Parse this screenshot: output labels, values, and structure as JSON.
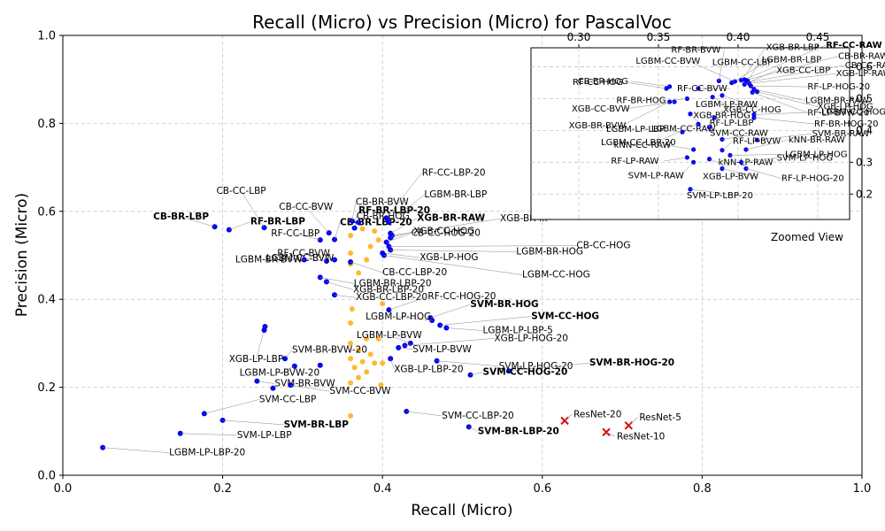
{
  "chart_data": {
    "type": "scatter",
    "title": "Recall (Micro) vs Precision (Micro) for PascalVoc",
    "xlabel": "Recall (Micro)",
    "ylabel": "Precision (Micro)",
    "xlim": [
      0,
      1
    ],
    "ylim": [
      0,
      1
    ],
    "xticks": [
      "0.0",
      "0.2",
      "0.4",
      "0.6",
      "0.8",
      "1.0"
    ],
    "yticks": [
      "0.0",
      "0.2",
      "0.4",
      "0.6",
      "0.8",
      "1.0"
    ],
    "grid": true,
    "colors": {
      "classic": "#0000ee",
      "cluster": "#ffb833",
      "deep": "#dd0000",
      "leader": "#888888"
    },
    "series": [
      {
        "marker": "dot",
        "points": [
          {
            "x": 0.19,
            "y": 0.565,
            "label": "CB-BR-LBP",
            "bold": true
          },
          {
            "x": 0.208,
            "y": 0.558,
            "label": "RF-BR-LBP",
            "bold": true
          },
          {
            "x": 0.252,
            "y": 0.563,
            "label": "CB-CC-LBP"
          },
          {
            "x": 0.322,
            "y": 0.535,
            "label": "RF-CC-LBP"
          },
          {
            "x": 0.333,
            "y": 0.551,
            "label": "CB-CC-BVW"
          },
          {
            "x": 0.34,
            "y": 0.536,
            "label": "CB-BR-LBP-20",
            "bold": true
          },
          {
            "x": 0.362,
            "y": 0.578,
            "label": "CB-BR-BVW"
          },
          {
            "x": 0.37,
            "y": 0.575,
            "label": "RF-BR-LBP-20",
            "bold": true
          },
          {
            "x": 0.365,
            "y": 0.562,
            "label": "CB-BR-HOG"
          },
          {
            "x": 0.405,
            "y": 0.585,
            "label": "RF-CC-LBP-20"
          },
          {
            "x": 0.408,
            "y": 0.575,
            "label": "LGBM-BR-LBP"
          },
          {
            "x": 0.41,
            "y": 0.55,
            "label": "XGB-BR-RAW",
            "bold": true
          },
          {
            "x": 0.412,
            "y": 0.545,
            "label": "XGB-BR-..."
          },
          {
            "x": 0.41,
            "y": 0.54,
            "label": "XGB-CC-HOG"
          },
          {
            "x": 0.405,
            "y": 0.53,
            "label": "CB-CC-HOG-20"
          },
          {
            "x": 0.408,
            "y": 0.52,
            "label": "CB-CC-HOG"
          },
          {
            "x": 0.41,
            "y": 0.512,
            "label": "LGBM-BR-HOG"
          },
          {
            "x": 0.4,
            "y": 0.505,
            "label": "XGB-LP-HOG"
          },
          {
            "x": 0.402,
            "y": 0.5,
            "label": "LGBM-CC-HOG"
          },
          {
            "x": 0.34,
            "y": 0.49,
            "label": "RF-CC-BVW"
          },
          {
            "x": 0.33,
            "y": 0.487,
            "label": "LGBM-CC-BVW"
          },
          {
            "x": 0.302,
            "y": 0.49,
            "label": "LGBM-BR-BVW"
          },
          {
            "x": 0.36,
            "y": 0.485,
            "label": "CB-CC-LBP-20"
          },
          {
            "x": 0.322,
            "y": 0.45,
            "label": "LGBM-BR-LBP-20"
          },
          {
            "x": 0.33,
            "y": 0.44,
            "label": "XGB-BR-LBP-20"
          },
          {
            "x": 0.34,
            "y": 0.41,
            "label": "XGB-CC-LBP-20"
          },
          {
            "x": 0.408,
            "y": 0.376,
            "label": "RF-CC-HOG-20"
          },
          {
            "x": 0.46,
            "y": 0.358,
            "label": "SVM-BR-HOG",
            "bold": true
          },
          {
            "x": 0.462,
            "y": 0.352,
            "label": "LGBM-LP-HOG"
          },
          {
            "x": 0.472,
            "y": 0.341,
            "label": "SVM-CC-HOG",
            "bold": true
          },
          {
            "x": 0.48,
            "y": 0.335,
            "label": "LGBM-LP-LBP-5"
          },
          {
            "x": 0.253,
            "y": 0.338,
            "label": "XGB-LP-LBP"
          },
          {
            "x": 0.252,
            "y": 0.33,
            "label": ""
          },
          {
            "x": 0.435,
            "y": 0.3,
            "label": "LGBM-LP-BVW"
          },
          {
            "x": 0.428,
            "y": 0.295,
            "label": "XGB-LP-HOG-20"
          },
          {
            "x": 0.42,
            "y": 0.29,
            "label": "SVM-LP-BVW"
          },
          {
            "x": 0.41,
            "y": 0.265,
            "label": "XGB-LP-LBP-20"
          },
          {
            "x": 0.468,
            "y": 0.26,
            "label": "SVM-LP-HOG-20"
          },
          {
            "x": 0.558,
            "y": 0.237,
            "label": "SVM-BR-HOG-20",
            "bold": true
          },
          {
            "x": 0.51,
            "y": 0.228,
            "label": "SVM-CC-HOG-20",
            "bold": true
          },
          {
            "x": 0.278,
            "y": 0.265,
            "label": "SVM-BR-BVW-20"
          },
          {
            "x": 0.29,
            "y": 0.248,
            "label": "LGBM-LP-BVW-20"
          },
          {
            "x": 0.322,
            "y": 0.25,
            "label": ""
          },
          {
            "x": 0.243,
            "y": 0.214,
            "label": "SVM-BR-BVW"
          },
          {
            "x": 0.263,
            "y": 0.198,
            "label": ""
          },
          {
            "x": 0.285,
            "y": 0.205,
            "label": "SVM-CC-BVW"
          },
          {
            "x": 0.177,
            "y": 0.14,
            "label": "SVM-CC-LBP"
          },
          {
            "x": 0.2,
            "y": 0.125,
            "label": "SVM-BR-LBP",
            "bold": true
          },
          {
            "x": 0.147,
            "y": 0.095,
            "label": "SVM-LP-LBP"
          },
          {
            "x": 0.05,
            "y": 0.063,
            "label": "LGBM-LP-LBP-20"
          },
          {
            "x": 0.43,
            "y": 0.145,
            "label": "SVM-CC-LBP-20"
          },
          {
            "x": 0.508,
            "y": 0.11,
            "label": "SVM-BR-LBP-20",
            "bold": true
          }
        ]
      },
      {
        "marker": "dot",
        "points": [
          {
            "x": 0.36,
            "y": 0.545
          },
          {
            "x": 0.375,
            "y": 0.56
          },
          {
            "x": 0.39,
            "y": 0.555
          },
          {
            "x": 0.395,
            "y": 0.535
          },
          {
            "x": 0.385,
            "y": 0.52
          },
          {
            "x": 0.36,
            "y": 0.505
          },
          {
            "x": 0.38,
            "y": 0.49
          },
          {
            "x": 0.37,
            "y": 0.46
          },
          {
            "x": 0.36,
            "y": 0.48
          },
          {
            "x": 0.4,
            "y": 0.39
          },
          {
            "x": 0.362,
            "y": 0.378
          },
          {
            "x": 0.36,
            "y": 0.346
          },
          {
            "x": 0.38,
            "y": 0.31
          },
          {
            "x": 0.395,
            "y": 0.31
          },
          {
            "x": 0.36,
            "y": 0.3
          },
          {
            "x": 0.37,
            "y": 0.285
          },
          {
            "x": 0.385,
            "y": 0.275
          },
          {
            "x": 0.36,
            "y": 0.265
          },
          {
            "x": 0.375,
            "y": 0.258
          },
          {
            "x": 0.39,
            "y": 0.255
          },
          {
            "x": 0.4,
            "y": 0.255
          },
          {
            "x": 0.365,
            "y": 0.245
          },
          {
            "x": 0.38,
            "y": 0.235
          },
          {
            "x": 0.37,
            "y": 0.222
          },
          {
            "x": 0.36,
            "y": 0.21
          },
          {
            "x": 0.398,
            "y": 0.205
          },
          {
            "x": 0.36,
            "y": 0.135
          }
        ]
      },
      {
        "marker": "x",
        "points": [
          {
            "x": 0.628,
            "y": 0.124,
            "label": "ResNet-20"
          },
          {
            "x": 0.708,
            "y": 0.113,
            "label": "ResNet-5"
          },
          {
            "x": 0.68,
            "y": 0.098,
            "label": "ResNet-10"
          }
        ]
      }
    ],
    "inset": {
      "title": "Zoomed View",
      "xlim": [
        0.27,
        0.47
      ],
      "ylim": [
        0.12,
        0.66
      ],
      "xticks": [
        "0.30",
        "0.35",
        "0.40",
        "0.45"
      ],
      "yticks": [
        "0.2",
        "0.3",
        "0.4",
        "0.5",
        "0.6"
      ],
      "points": [
        {
          "x": 0.388,
          "y": 0.556,
          "label": "RF-BR-BVW"
        },
        {
          "x": 0.402,
          "y": 0.558,
          "label": "XGB-BR-LBP"
        },
        {
          "x": 0.404,
          "y": 0.56,
          "label": "RF-CC-RAW",
          "bold": true
        },
        {
          "x": 0.405,
          "y": 0.558,
          "label": "CB-BR-RAW"
        },
        {
          "x": 0.406,
          "y": 0.556,
          "label": "LGBM-BR-LBP"
        },
        {
          "x": 0.406,
          "y": 0.552,
          "label": "CB-CC-RAW"
        },
        {
          "x": 0.407,
          "y": 0.548,
          "label": "XGB-LP-RAW"
        },
        {
          "x": 0.404,
          "y": 0.545,
          "label": "XGB-CC-LBP"
        },
        {
          "x": 0.408,
          "y": 0.54,
          "label": "RF-LP-HOG-20"
        },
        {
          "x": 0.396,
          "y": 0.55,
          "label": "LGBM-CC-LBP"
        },
        {
          "x": 0.398,
          "y": 0.554,
          "label": "LGBM-CC-BVW"
        },
        {
          "x": 0.357,
          "y": 0.538,
          "label": "CB-BR-HOG"
        },
        {
          "x": 0.355,
          "y": 0.532,
          "label": "RF-CC-HOG"
        },
        {
          "x": 0.375,
          "y": 0.532,
          "label": "RF-CC-BVW"
        },
        {
          "x": 0.41,
          "y": 0.53,
          "label": "LGBM-BR-RAW"
        },
        {
          "x": 0.412,
          "y": 0.522,
          "label": "XGB-LP-HOG"
        },
        {
          "x": 0.409,
          "y": 0.52,
          "label": "RF-LP-BVW-20"
        },
        {
          "x": 0.39,
          "y": 0.51,
          "label": "LGBM-LP-RAW"
        },
        {
          "x": 0.384,
          "y": 0.505,
          "label": "XGB-BR-HOG"
        },
        {
          "x": 0.368,
          "y": 0.5,
          "label": "RF-BR-HOG"
        },
        {
          "x": 0.36,
          "y": 0.49,
          "label": "XGB-CC-BVW"
        },
        {
          "x": 0.357,
          "y": 0.49,
          "label": "XGB-BR-BVW"
        },
        {
          "x": 0.37,
          "y": 0.452,
          "label": "LGBM-CC-RAW"
        },
        {
          "x": 0.41,
          "y": 0.45,
          "label": "LGBM-CC-HOG"
        },
        {
          "x": 0.385,
          "y": 0.44,
          "label": "XGB-CC-HOG"
        },
        {
          "x": 0.41,
          "y": 0.44,
          "label": "RF-BR-HOG-20"
        },
        {
          "x": 0.375,
          "y": 0.42,
          "label": "LGBM-CC-LBP-20"
        },
        {
          "x": 0.382,
          "y": 0.41,
          "label": "RF-LP-LBP"
        },
        {
          "x": 0.365,
          "y": 0.395,
          "label": "LGBM-LP-LBP"
        },
        {
          "x": 0.39,
          "y": 0.372,
          "label": "SVM-CC-RAW"
        },
        {
          "x": 0.412,
          "y": 0.37,
          "label": "SVM-BR-RAW"
        },
        {
          "x": 0.372,
          "y": 0.34,
          "label": "kNN-CC-RAW"
        },
        {
          "x": 0.39,
          "y": 0.338,
          "label": "RF-LP-BVW"
        },
        {
          "x": 0.405,
          "y": 0.34,
          "label": "kNN-BR-RAW"
        },
        {
          "x": 0.395,
          "y": 0.322,
          "label": "LGBM-LP-HOG"
        },
        {
          "x": 0.368,
          "y": 0.315,
          "label": "RF-LP-RAW"
        },
        {
          "x": 0.382,
          "y": 0.31,
          "label": "kNN-LP-RAW"
        },
        {
          "x": 0.372,
          "y": 0.3,
          "label": "SVM-LP-RAW"
        },
        {
          "x": 0.402,
          "y": 0.3,
          "label": "SVM-LP-HOG"
        },
        {
          "x": 0.39,
          "y": 0.28,
          "label": "XGB-LP-BVW"
        },
        {
          "x": 0.405,
          "y": 0.28,
          "label": "RF-LP-HOG-20"
        },
        {
          "x": 0.37,
          "y": 0.215,
          "label": "SVM-LP-LBP-20"
        }
      ]
    }
  }
}
